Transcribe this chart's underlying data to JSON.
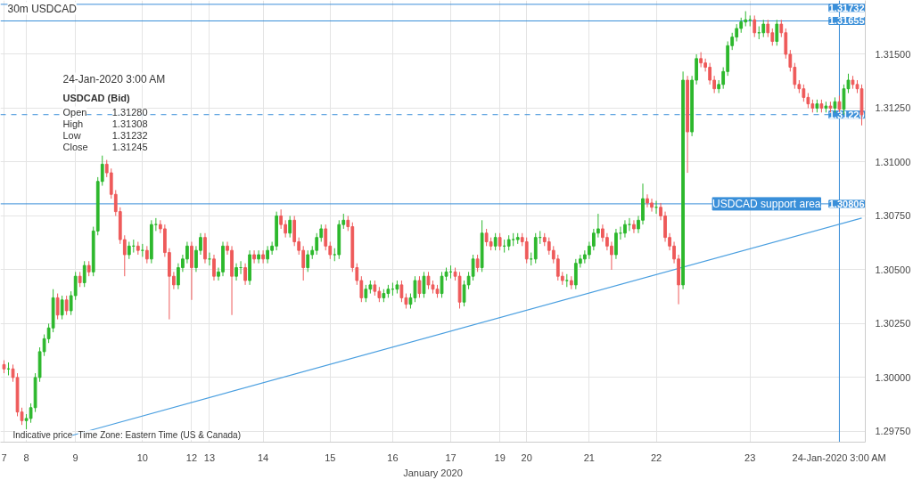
{
  "chart_data": {
    "type": "candlestick",
    "title": "30m USDCAD",
    "xlabel": "January 2020",
    "categories": [
      "7",
      null,
      null,
      null,
      null,
      "8",
      null,
      null,
      null,
      null,
      null,
      null,
      null,
      null,
      null,
      null,
      "9",
      null,
      null,
      null,
      null,
      null,
      null,
      null,
      null,
      null,
      null,
      null,
      null,
      null,
      null,
      "10",
      null,
      null,
      null,
      null,
      null,
      null,
      null,
      null,
      null,
      null,
      "12",
      null,
      null,
      null,
      "13",
      null,
      null,
      null,
      null,
      null,
      null,
      null,
      null,
      null,
      null,
      null,
      "14",
      null,
      null,
      null,
      null,
      null,
      null,
      null,
      null,
      null,
      null,
      null,
      null,
      null,
      null,
      "15",
      null,
      null,
      null,
      null,
      null,
      null,
      null,
      null,
      null,
      null,
      null,
      null,
      null,
      "16",
      null,
      null,
      null,
      null,
      null,
      null,
      null,
      null,
      null,
      null,
      null,
      null,
      "17",
      null,
      null,
      null,
      null,
      null,
      null,
      null,
      null,
      null,
      null,
      "19",
      null,
      null,
      null,
      null,
      null,
      "20",
      null,
      null,
      null,
      null,
      null,
      null,
      null,
      null,
      null,
      null,
      null,
      null,
      null,
      "21",
      null,
      null,
      null,
      null,
      null,
      null,
      null,
      null,
      null,
      null,
      null,
      null,
      null,
      null,
      "22",
      null,
      null,
      null,
      null,
      null,
      null,
      null,
      null,
      null,
      null,
      null,
      null,
      null,
      null,
      null,
      null,
      null,
      null,
      null,
      null,
      "23",
      null,
      null,
      null,
      null,
      null,
      null,
      null,
      null,
      null,
      null,
      null,
      null,
      null,
      null,
      null,
      null,
      null,
      null,
      null,
      "24-Jan-2020 3:00 AM",
      null,
      null,
      null,
      null,
      null
    ],
    "ohlc": [
      [
        1.3006,
        1.3008,
        1.3002,
        1.3004
      ],
      [
        1.3004,
        1.3007,
        1.3001,
        1.3004
      ],
      [
        1.3004,
        1.3006,
        1.2998,
        1.3
      ],
      [
        1.3,
        1.3002,
        1.2982,
        1.2984
      ],
      [
        1.2984,
        1.2986,
        1.2978,
        1.298
      ],
      [
        1.298,
        1.2983,
        1.2976,
        1.2981
      ],
      [
        1.2981,
        1.2988,
        1.2979,
        1.2986
      ],
      [
        1.2986,
        1.3002,
        1.2984,
        1.3
      ],
      [
        1.3,
        1.3014,
        1.2998,
        1.3012
      ],
      [
        1.3012,
        1.302,
        1.301,
        1.3018
      ],
      [
        1.3018,
        1.3025,
        1.3016,
        1.3023
      ],
      [
        1.3023,
        1.3041,
        1.3021,
        1.3037
      ],
      [
        1.3037,
        1.3039,
        1.3027,
        1.3029
      ],
      [
        1.3029,
        1.3038,
        1.3027,
        1.3036
      ],
      [
        1.3036,
        1.3038,
        1.3029,
        1.3031
      ],
      [
        1.3031,
        1.304,
        1.3029,
        1.3038
      ],
      [
        1.3038,
        1.3049,
        1.3036,
        1.3047
      ],
      [
        1.3047,
        1.3049,
        1.3042,
        1.3044
      ],
      [
        1.3044,
        1.3054,
        1.3042,
        1.3052
      ],
      [
        1.3052,
        1.3054,
        1.3047,
        1.3049
      ],
      [
        1.3049,
        1.307,
        1.3047,
        1.3068
      ],
      [
        1.3068,
        1.3093,
        1.3066,
        1.3091
      ],
      [
        1.3091,
        1.3103,
        1.3089,
        1.3099
      ],
      [
        1.3099,
        1.3101,
        1.3093,
        1.3095
      ],
      [
        1.3095,
        1.3097,
        1.3083,
        1.3085
      ],
      [
        1.3085,
        1.3087,
        1.3075,
        1.3077
      ],
      [
        1.3077,
        1.3079,
        1.3062,
        1.3064
      ],
      [
        1.3064,
        1.3066,
        1.3047,
        1.3057
      ],
      [
        1.3057,
        1.3063,
        1.3055,
        1.3061
      ],
      [
        1.3061,
        1.3064,
        1.3058,
        1.3061
      ],
      [
        1.3061,
        1.3063,
        1.3057,
        1.3059
      ],
      [
        1.3059,
        1.3062,
        1.3056,
        1.3059
      ],
      [
        1.3059,
        1.3061,
        1.3053,
        1.3055
      ],
      [
        1.3055,
        1.3073,
        1.3053,
        1.3071
      ],
      [
        1.3071,
        1.3074,
        1.3068,
        1.3071
      ],
      [
        1.3071,
        1.3073,
        1.3067,
        1.3069
      ],
      [
        1.3069,
        1.3071,
        1.3056,
        1.3058
      ],
      [
        1.3058,
        1.306,
        1.3027,
        1.3047
      ],
      [
        1.3047,
        1.3049,
        1.3041,
        1.3043
      ],
      [
        1.3043,
        1.3053,
        1.3041,
        1.3051
      ],
      [
        1.3051,
        1.3057,
        1.3049,
        1.3055
      ],
      [
        1.3055,
        1.3063,
        1.3053,
        1.3061
      ],
      [
        1.3061,
        1.3063,
        1.3036,
        1.3051
      ],
      [
        1.3051,
        1.3061,
        1.3049,
        1.3059
      ],
      [
        1.3059,
        1.3067,
        1.3057,
        1.3065
      ],
      [
        1.3065,
        1.3067,
        1.3053,
        1.3055
      ],
      [
        1.3055,
        1.3058,
        1.3052,
        1.3055
      ],
      [
        1.3055,
        1.3057,
        1.3045,
        1.3047
      ],
      [
        1.3047,
        1.3051,
        1.3045,
        1.3049
      ],
      [
        1.3049,
        1.3063,
        1.3047,
        1.3061
      ],
      [
        1.3061,
        1.3063,
        1.3057,
        1.3059
      ],
      [
        1.3059,
        1.3061,
        1.3029,
        1.3047
      ],
      [
        1.3047,
        1.3053,
        1.3045,
        1.3051
      ],
      [
        1.3051,
        1.3054,
        1.3048,
        1.3051
      ],
      [
        1.3051,
        1.3053,
        1.3043,
        1.3045
      ],
      [
        1.3045,
        1.3059,
        1.3043,
        1.3057
      ],
      [
        1.3057,
        1.3059,
        1.3053,
        1.3055
      ],
      [
        1.3055,
        1.3059,
        1.3053,
        1.3057
      ],
      [
        1.3057,
        1.3059,
        1.3053,
        1.3055
      ],
      [
        1.3055,
        1.3061,
        1.3053,
        1.3059
      ],
      [
        1.3059,
        1.3063,
        1.3057,
        1.3061
      ],
      [
        1.3061,
        1.3077,
        1.3059,
        1.3075
      ],
      [
        1.3075,
        1.3078,
        1.3069,
        1.3071
      ],
      [
        1.3071,
        1.3073,
        1.3065,
        1.3067
      ],
      [
        1.3067,
        1.3075,
        1.3065,
        1.3073
      ],
      [
        1.3073,
        1.3075,
        1.3061,
        1.3063
      ],
      [
        1.3063,
        1.3065,
        1.3057,
        1.3059
      ],
      [
        1.3059,
        1.3061,
        1.3045,
        1.3051
      ],
      [
        1.3051,
        1.3059,
        1.3049,
        1.3057
      ],
      [
        1.3057,
        1.3061,
        1.3055,
        1.3059
      ],
      [
        1.3059,
        1.3067,
        1.3057,
        1.3065
      ],
      [
        1.3065,
        1.3071,
        1.3063,
        1.3069
      ],
      [
        1.3069,
        1.3071,
        1.3059,
        1.3061
      ],
      [
        1.3061,
        1.3063,
        1.3055,
        1.3057
      ],
      [
        1.3057,
        1.306,
        1.3054,
        1.3057
      ],
      [
        1.3057,
        1.3073,
        1.3055,
        1.3071
      ],
      [
        1.3071,
        1.3076,
        1.3069,
        1.3073
      ],
      [
        1.3073,
        1.3075,
        1.3068,
        1.307
      ],
      [
        1.307,
        1.3072,
        1.3049,
        1.3051
      ],
      [
        1.3051,
        1.3053,
        1.3043,
        1.3045
      ],
      [
        1.3045,
        1.3047,
        1.3035,
        1.3037
      ],
      [
        1.3037,
        1.3043,
        1.3035,
        1.3041
      ],
      [
        1.3041,
        1.3045,
        1.3039,
        1.3043
      ],
      [
        1.3043,
        1.3045,
        1.3038,
        1.304
      ],
      [
        1.304,
        1.3042,
        1.3035,
        1.3037
      ],
      [
        1.3037,
        1.3041,
        1.3035,
        1.3039
      ],
      [
        1.3039,
        1.3043,
        1.3037,
        1.3041
      ],
      [
        1.3041,
        1.3044,
        1.3038,
        1.3041
      ],
      [
        1.3041,
        1.3045,
        1.3039,
        1.3043
      ],
      [
        1.3043,
        1.3045,
        1.3035,
        1.3037
      ],
      [
        1.3037,
        1.3039,
        1.3032,
        1.3034
      ],
      [
        1.3034,
        1.3039,
        1.3032,
        1.3037
      ],
      [
        1.3037,
        1.3047,
        1.3035,
        1.3045
      ],
      [
        1.3045,
        1.3047,
        1.3037,
        1.3039
      ],
      [
        1.3039,
        1.3049,
        1.3037,
        1.3047
      ],
      [
        1.3047,
        1.3049,
        1.3041,
        1.3043
      ],
      [
        1.3043,
        1.3045,
        1.3039,
        1.3041
      ],
      [
        1.3041,
        1.3043,
        1.3037,
        1.3039
      ],
      [
        1.3039,
        1.3049,
        1.3037,
        1.3047
      ],
      [
        1.3047,
        1.3051,
        1.3045,
        1.3049
      ],
      [
        1.3049,
        1.3052,
        1.3046,
        1.3049
      ],
      [
        1.3049,
        1.3051,
        1.3045,
        1.3047
      ],
      [
        1.3047,
        1.3049,
        1.3032,
        1.3035
      ],
      [
        1.3035,
        1.3045,
        1.3033,
        1.3043
      ],
      [
        1.3043,
        1.3049,
        1.3041,
        1.3047
      ],
      [
        1.3047,
        1.3057,
        1.3045,
        1.3055
      ],
      [
        1.3055,
        1.3057,
        1.3049,
        1.3051
      ],
      [
        1.3051,
        1.3073,
        1.3049,
        1.3067
      ],
      [
        1.3067,
        1.3069,
        1.3061,
        1.3063
      ],
      [
        1.3063,
        1.3065,
        1.3059,
        1.3061
      ],
      [
        1.3061,
        1.3067,
        1.3059,
        1.3065
      ],
      [
        1.3065,
        1.3067,
        1.3059,
        1.3061
      ],
      [
        1.3061,
        1.3064,
        1.3058,
        1.3061
      ],
      [
        1.3061,
        1.3066,
        1.3059,
        1.3064
      ],
      [
        1.3064,
        1.3067,
        1.3061,
        1.3064
      ],
      [
        1.3064,
        1.3067,
        1.3062,
        1.3065
      ],
      [
        1.3065,
        1.3067,
        1.3061,
        1.3063
      ],
      [
        1.3063,
        1.3065,
        1.3053,
        1.3055
      ],
      [
        1.3055,
        1.3058,
        1.3052,
        1.3055
      ],
      [
        1.3055,
        1.3067,
        1.3053,
        1.3065
      ],
      [
        1.3065,
        1.3068,
        1.3062,
        1.3065
      ],
      [
        1.3065,
        1.3067,
        1.3061,
        1.3063
      ],
      [
        1.3063,
        1.3065,
        1.3057,
        1.3059
      ],
      [
        1.3059,
        1.3061,
        1.3053,
        1.3055
      ],
      [
        1.3055,
        1.3057,
        1.3045,
        1.3047
      ],
      [
        1.3047,
        1.3049,
        1.3043,
        1.3045
      ],
      [
        1.3045,
        1.3048,
        1.3042,
        1.3045
      ],
      [
        1.3045,
        1.3047,
        1.3041,
        1.3043
      ],
      [
        1.3043,
        1.3055,
        1.3041,
        1.3053
      ],
      [
        1.3053,
        1.3057,
        1.3051,
        1.3055
      ],
      [
        1.3055,
        1.3059,
        1.3053,
        1.3057
      ],
      [
        1.3057,
        1.3063,
        1.3055,
        1.3061
      ],
      [
        1.3061,
        1.3069,
        1.3059,
        1.3067
      ],
      [
        1.3067,
        1.3076,
        1.3065,
        1.3069
      ],
      [
        1.3069,
        1.3071,
        1.3063,
        1.3065
      ],
      [
        1.3065,
        1.3067,
        1.3059,
        1.3061
      ],
      [
        1.3061,
        1.3063,
        1.305,
        1.3057
      ],
      [
        1.3057,
        1.3069,
        1.3055,
        1.3067
      ],
      [
        1.3067,
        1.307,
        1.3064,
        1.3067
      ],
      [
        1.3067,
        1.3073,
        1.3065,
        1.3071
      ],
      [
        1.3071,
        1.3074,
        1.3068,
        1.3071
      ],
      [
        1.3071,
        1.3073,
        1.3067,
        1.3069
      ],
      [
        1.3069,
        1.3075,
        1.3067,
        1.3073
      ],
      [
        1.3073,
        1.309,
        1.3071,
        1.3083
      ],
      [
        1.3083,
        1.3085,
        1.3079,
        1.3081
      ],
      [
        1.3081,
        1.3083,
        1.3077,
        1.3079
      ],
      [
        1.3079,
        1.3082,
        1.3076,
        1.3079
      ],
      [
        1.3079,
        1.3081,
        1.3073,
        1.3075
      ],
      [
        1.3075,
        1.3077,
        1.3063,
        1.3065
      ],
      [
        1.3065,
        1.3067,
        1.3059,
        1.3061
      ],
      [
        1.3061,
        1.3063,
        1.3053,
        1.3055
      ],
      [
        1.3055,
        1.3057,
        1.3034,
        1.3043
      ],
      [
        1.3043,
        1.3142,
        1.3041,
        1.3138
      ],
      [
        1.3138,
        1.314,
        1.3095,
        1.3114
      ],
      [
        1.3114,
        1.314,
        1.3112,
        1.3138
      ],
      [
        1.3138,
        1.315,
        1.3136,
        1.3148
      ],
      [
        1.3148,
        1.3151,
        1.3144,
        1.3146
      ],
      [
        1.3146,
        1.3148,
        1.3142,
        1.3144
      ],
      [
        1.3144,
        1.3146,
        1.3136,
        1.3138
      ],
      [
        1.3138,
        1.314,
        1.3132,
        1.3134
      ],
      [
        1.3134,
        1.3138,
        1.3132,
        1.3136
      ],
      [
        1.3136,
        1.3144,
        1.3134,
        1.3142
      ],
      [
        1.3142,
        1.3156,
        1.314,
        1.3154
      ],
      [
        1.3154,
        1.316,
        1.3152,
        1.3158
      ],
      [
        1.3158,
        1.3164,
        1.3156,
        1.3162
      ],
      [
        1.3162,
        1.3167,
        1.316,
        1.3165
      ],
      [
        1.3165,
        1.317,
        1.3163,
        1.3166
      ],
      [
        1.3166,
        1.3168,
        1.3163,
        1.3166
      ],
      [
        1.3166,
        1.3168,
        1.3158,
        1.316
      ],
      [
        1.316,
        1.3163,
        1.3157,
        1.316
      ],
      [
        1.316,
        1.3166,
        1.3158,
        1.3164
      ],
      [
        1.3164,
        1.3166,
        1.3158,
        1.316
      ],
      [
        1.316,
        1.3162,
        1.3154,
        1.3156
      ],
      [
        1.3156,
        1.3166,
        1.3154,
        1.3164
      ],
      [
        1.3164,
        1.3166,
        1.3158,
        1.316
      ],
      [
        1.316,
        1.3162,
        1.3148,
        1.315
      ],
      [
        1.315,
        1.3152,
        1.3142,
        1.3144
      ],
      [
        1.3144,
        1.3146,
        1.3134,
        1.3136
      ],
      [
        1.3136,
        1.3138,
        1.3132,
        1.3134
      ],
      [
        1.3134,
        1.3136,
        1.3128,
        1.313
      ],
      [
        1.313,
        1.3132,
        1.3125,
        1.3127
      ],
      [
        1.3127,
        1.3129,
        1.3123,
        1.3125
      ],
      [
        1.3125,
        1.3129,
        1.3123,
        1.3127
      ],
      [
        1.3127,
        1.3129,
        1.3123,
        1.3125
      ],
      [
        1.3125,
        1.3128,
        1.3123,
        1.3126
      ],
      [
        1.3126,
        1.3128,
        1.3123,
        1.3125
      ],
      [
        1.3125,
        1.313,
        1.3123,
        1.3128
      ],
      [
        1.3128,
        1.31308,
        1.31232,
        1.31245
      ],
      [
        1.31245,
        1.3136,
        1.3122,
        1.3134
      ],
      [
        1.3134,
        1.3141,
        1.3132,
        1.3138
      ],
      [
        1.3138,
        1.314,
        1.3134,
        1.3136
      ],
      [
        1.3136,
        1.3138,
        1.3132,
        1.3134
      ],
      [
        1.3134,
        1.3136,
        1.3117,
        1.3122
      ]
    ],
    "series": [
      {
        "type": "line",
        "color": "#4a9fe0",
        "values": [
          null,
          null,
          null,
          null,
          null,
          null,
          null,
          null,
          null,
          null,
          null,
          null,
          null,
          null,
          null,
          1.2973,
          null,
          null,
          null,
          null,
          null,
          null,
          null,
          null,
          null,
          null,
          null,
          null,
          null,
          null,
          null,
          null,
          null,
          null,
          null,
          null,
          null,
          null,
          null,
          null,
          null,
          null,
          null,
          null,
          null,
          null,
          null,
          null,
          null,
          null,
          null,
          null,
          null,
          null,
          null,
          null,
          null,
          null,
          null,
          null,
          null,
          null,
          null,
          null,
          null,
          null,
          null,
          null,
          null,
          null,
          null,
          null,
          null,
          null,
          null,
          null,
          null,
          null,
          null,
          null,
          null,
          null,
          null,
          null,
          null,
          null,
          null,
          null,
          null,
          null,
          null,
          null,
          null,
          null,
          null,
          null,
          null,
          null,
          null,
          null,
          null,
          null,
          null,
          null,
          null,
          null,
          null,
          null,
          null,
          null,
          null,
          null,
          null,
          null,
          null,
          null,
          null,
          null,
          null,
          null,
          null,
          null,
          null,
          null,
          null,
          null,
          null,
          null,
          null,
          null,
          null,
          null,
          null,
          null,
          null,
          null,
          null,
          null,
          null,
          null,
          null,
          null,
          null,
          null,
          null,
          null,
          null,
          null,
          null,
          null,
          null,
          null,
          null,
          null,
          null,
          null,
          null,
          null,
          null,
          null,
          null,
          null,
          null,
          null,
          null,
          null,
          null,
          null,
          null,
          null,
          null,
          null,
          null,
          null,
          null,
          null,
          null,
          null,
          null,
          null,
          null,
          null,
          null,
          null,
          null,
          null,
          null,
          null,
          null,
          null,
          null,
          null,
          1.3074
        ]
      }
    ],
    "ylim": [
      1.297,
      1.3175
    ],
    "yticks": [
      {
        "value": 1.2975,
        "label": "1.29750"
      },
      {
        "value": 1.3,
        "label": "1.30000"
      },
      {
        "value": 1.3025,
        "label": "1.30250"
      },
      {
        "value": 1.305,
        "label": "1.30500"
      },
      {
        "value": 1.3075,
        "label": "1.30750"
      },
      {
        "value": 1.31,
        "label": "1.31000"
      },
      {
        "value": 1.3125,
        "label": "1.31250"
      },
      {
        "value": 1.315,
        "label": "1.31500"
      }
    ],
    "ref_lines": [
      {
        "axis": "y",
        "value": 1.31732,
        "label": "1.31732",
        "color": "#3a8fd9"
      },
      {
        "axis": "y",
        "value": 1.31655,
        "label": "1.31655",
        "color": "#3a8fd9"
      },
      {
        "axis": "y",
        "value": 1.3122,
        "label": "1.31220",
        "color": "#3a8fd9",
        "line_style": "dashed"
      },
      {
        "axis": "y",
        "value": 1.30806,
        "label": "1.30806",
        "color": "#3a8fd9"
      },
      {
        "axis": "x",
        "value": "24-Jan-2020 3:00 AM",
        "color": "#3a8fd9"
      }
    ],
    "annotations": [
      "24-Jan-2020 3:00 AM",
      "USDCAD (Bid)",
      "Open",
      "1.31280",
      "High",
      "1.31308",
      "Low",
      "1.31232",
      "Close",
      "1.31245",
      "Indicative price",
      "Time Zone: Eastern Time (US & Canada)",
      "USDCAD support area"
    ],
    "grid": true
  }
}
